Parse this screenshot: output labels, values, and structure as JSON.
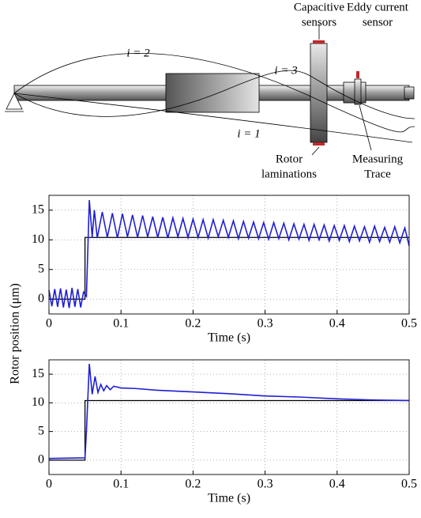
{
  "diagram": {
    "labels": [
      {
        "lines": [
          "Capacitive",
          "sensors"
        ]
      },
      {
        "lines": [
          "Eddy current",
          "sensor"
        ]
      },
      {
        "lines": [
          "i = 2"
        ]
      },
      {
        "lines": [
          "i = 3"
        ]
      },
      {
        "lines": [
          "i = 1"
        ]
      },
      {
        "lines": [
          "Rotor",
          "laminations"
        ]
      },
      {
        "lines": [
          "Measuring",
          "Trace"
        ]
      }
    ]
  },
  "chart_data": [
    {
      "type": "line",
      "xlabel": "Time (s)",
      "ylabel": "Rotor position (μm)",
      "xlim": [
        0,
        0.5
      ],
      "xticks": [
        0,
        0.1,
        0.2,
        0.3,
        0.4,
        0.5
      ],
      "ylim": [
        -2.5,
        17.5
      ],
      "yticks": [
        0,
        5,
        10,
        15
      ],
      "grid": true,
      "series": [
        {
          "color": "#000000",
          "x": [
            0,
            0.05,
            0.05,
            0.5
          ],
          "values": [
            0,
            0,
            10.4,
            10.4
          ]
        },
        {
          "color": "#1f1fd6",
          "x": [
            0,
            0.004,
            0.008,
            0.012,
            0.016,
            0.02,
            0.024,
            0.028,
            0.032,
            0.036,
            0.04,
            0.044,
            0.048,
            0.052,
            0.056,
            0.06,
            0.063,
            0.067,
            0.074,
            0.081,
            0.088,
            0.095,
            0.102,
            0.109,
            0.116,
            0.123,
            0.13,
            0.137,
            0.144,
            0.151,
            0.158,
            0.165,
            0.172,
            0.179,
            0.186,
            0.193,
            0.2,
            0.207,
            0.214,
            0.221,
            0.228,
            0.235,
            0.242,
            0.249,
            0.256,
            0.263,
            0.27,
            0.277,
            0.284,
            0.291,
            0.298,
            0.305,
            0.312,
            0.319,
            0.326,
            0.333,
            0.34,
            0.347,
            0.354,
            0.361,
            0.368,
            0.375,
            0.382,
            0.389,
            0.396,
            0.403,
            0.41,
            0.417,
            0.424,
            0.431,
            0.438,
            0.445,
            0.452,
            0.459,
            0.466,
            0.473,
            0.48,
            0.487,
            0.494,
            0.5
          ],
          "values": [
            1.5,
            -1.2,
            1.7,
            -1.3,
            1.8,
            -1.4,
            1.6,
            -1.5,
            1.9,
            -1.3,
            1.7,
            -1.4,
            1.2,
            0.5,
            16.7,
            10.5,
            15,
            10.3,
            14.7,
            10.4,
            14.5,
            10.3,
            14.4,
            10.5,
            14.2,
            10.4,
            14.1,
            10.5,
            13.9,
            10.4,
            13.8,
            10.3,
            13.7,
            10.5,
            13.6,
            10.4,
            13.5,
            10.4,
            13.4,
            10.3,
            13.4,
            10.5,
            13.3,
            10.4,
            13.2,
            10.2,
            13.1,
            10.3,
            13.0,
            10.2,
            12.9,
            10.1,
            12.9,
            10.2,
            12.8,
            10.0,
            12.7,
            10.1,
            12.6,
            9.9,
            12.6,
            10.0,
            12.5,
            9.8,
            12.4,
            9.9,
            12.4,
            9.7,
            12.3,
            9.8,
            12.2,
            9.6,
            12.3,
            9.7,
            12.1,
            9.6,
            12.2,
            9.5,
            12.0,
            9.0
          ]
        }
      ]
    },
    {
      "type": "line",
      "xlabel": "Time (s)",
      "xlim": [
        0,
        0.5
      ],
      "xticks": [
        0,
        0.1,
        0.2,
        0.3,
        0.4,
        0.5
      ],
      "ylim": [
        -2.5,
        17.5
      ],
      "yticks": [
        0,
        5,
        10,
        15
      ],
      "grid": true,
      "series": [
        {
          "color": "#000000",
          "x": [
            0,
            0.05,
            0.05,
            0.5
          ],
          "values": [
            0,
            0,
            10.4,
            10.4
          ]
        },
        {
          "color": "#1f1fd6",
          "x": [
            0,
            0.05,
            0.052,
            0.056,
            0.06,
            0.064,
            0.068,
            0.072,
            0.076,
            0.08,
            0.085,
            0.09,
            0.1,
            0.12,
            0.15,
            0.2,
            0.25,
            0.3,
            0.35,
            0.4,
            0.45,
            0.5
          ],
          "values": [
            0.3,
            0.4,
            5,
            16.8,
            11.5,
            14.6,
            11.8,
            13.2,
            12.1,
            13.0,
            12.3,
            12.9,
            12.6,
            12.5,
            12.2,
            11.9,
            11.6,
            11.2,
            11.0,
            10.7,
            10.5,
            10.4
          ]
        }
      ]
    }
  ]
}
